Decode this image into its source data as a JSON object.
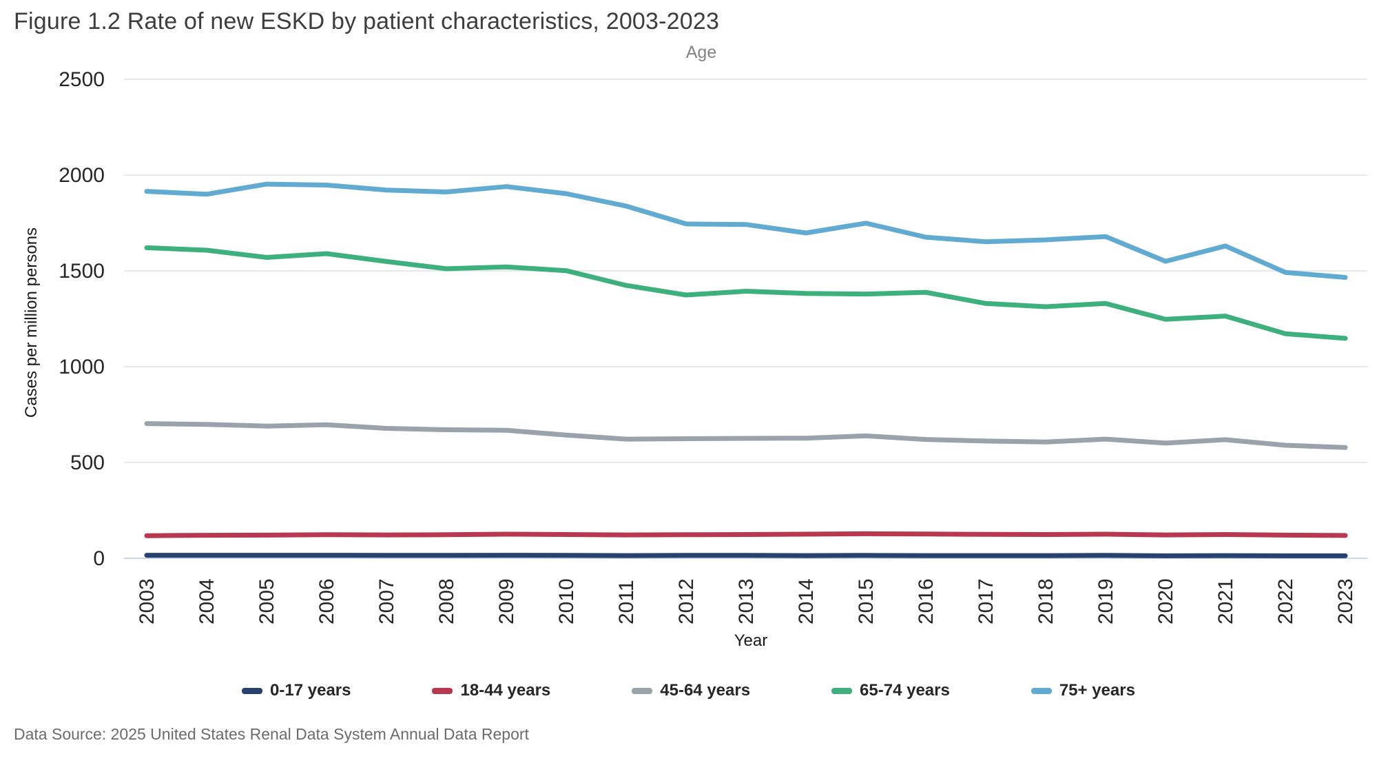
{
  "title": "Figure 1.2 Rate of new ESKD by patient characteristics, 2003-2023",
  "footer": "Data Source: 2025 United States Renal Data System Annual Data Report",
  "chart_data": {
    "type": "line",
    "title": "Age",
    "xlabel": "Year",
    "ylabel": "Cases per million persons",
    "ylim": [
      0,
      2500
    ],
    "yticks": [
      0,
      500,
      1000,
      1500,
      2000,
      2500
    ],
    "grid": true,
    "legend_position": "bottom",
    "grid_color": "#e8e8e8",
    "axis_line_color": "#ccd6ea",
    "tick_text_color": "#262626",
    "categories": [
      "2003",
      "2004",
      "2005",
      "2006",
      "2007",
      "2008",
      "2009",
      "2010",
      "2011",
      "2012",
      "2013",
      "2014",
      "2015",
      "2016",
      "2017",
      "2018",
      "2019",
      "2020",
      "2021",
      "2022",
      "2023"
    ],
    "series": [
      {
        "name": "0-17 years",
        "color": "#27426f",
        "values": [
          16,
          16,
          16,
          16,
          15,
          15,
          16,
          15,
          14,
          15,
          15,
          14,
          15,
          14,
          14,
          14,
          15,
          13,
          14,
          13,
          13
        ]
      },
      {
        "name": "18-44 years",
        "color": "#b8394f",
        "values": [
          118,
          120,
          121,
          123,
          122,
          123,
          126,
          124,
          122,
          123,
          124,
          126,
          128,
          127,
          125,
          124,
          126,
          122,
          124,
          121,
          119
        ]
      },
      {
        "name": "45-64 years",
        "color": "#9aa2ab",
        "values": [
          703,
          699,
          690,
          697,
          678,
          671,
          668,
          643,
          622,
          624,
          626,
          627,
          639,
          620,
          612,
          607,
          622,
          601,
          619,
          590,
          578
        ]
      },
      {
        "name": "65-74 years",
        "color": "#3eb07e",
        "values": [
          1621,
          1608,
          1570,
          1590,
          1549,
          1511,
          1521,
          1501,
          1424,
          1374,
          1394,
          1382,
          1379,
          1388,
          1330,
          1313,
          1330,
          1247,
          1264,
          1172,
          1148
        ]
      },
      {
        "name": "75+ years",
        "color": "#61abd2",
        "values": [
          1915,
          1900,
          1953,
          1948,
          1922,
          1912,
          1940,
          1903,
          1838,
          1745,
          1742,
          1698,
          1749,
          1676,
          1652,
          1662,
          1679,
          1550,
          1630,
          1492,
          1466
        ]
      }
    ]
  }
}
